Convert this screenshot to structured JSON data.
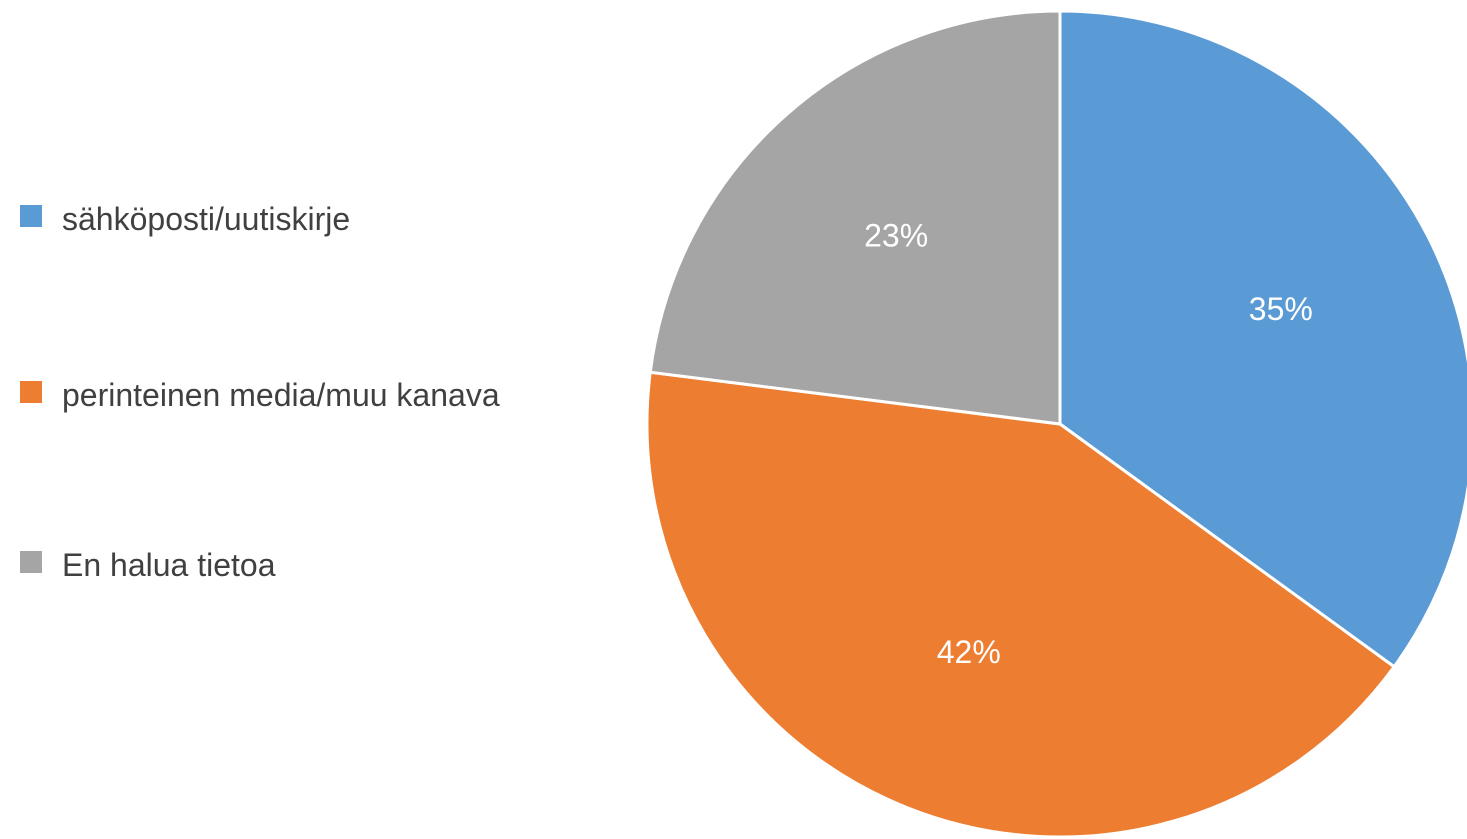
{
  "chart_data": {
    "type": "pie",
    "categories": [
      "sähköposti/uutiskirje",
      "perinteinen media/muu kanava",
      "En halua tietoa"
    ],
    "values": [
      35,
      42,
      23
    ],
    "value_labels": [
      "35%",
      "42%",
      "23%"
    ],
    "colors": [
      "#5b9bd5",
      "#ed7d31",
      "#a5a5a5"
    ],
    "legend": "left"
  }
}
